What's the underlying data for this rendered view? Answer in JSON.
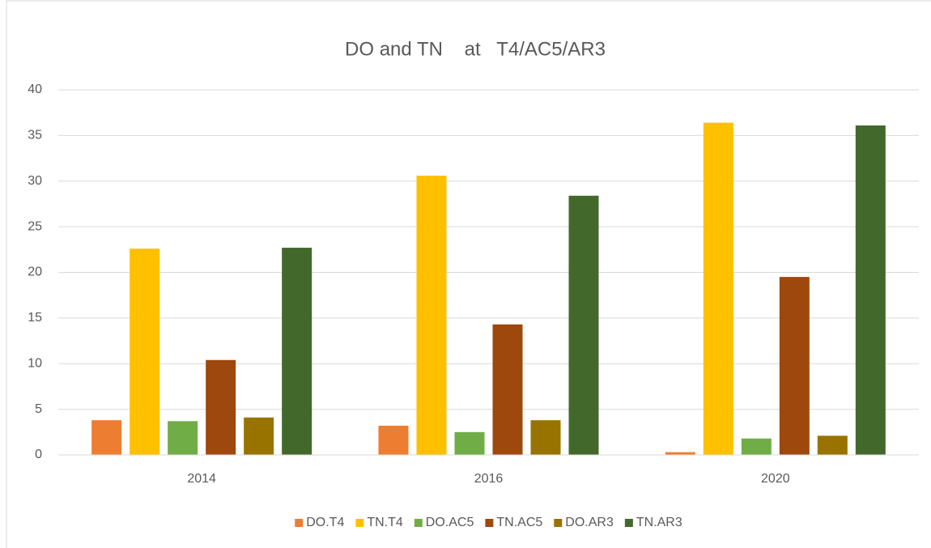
{
  "chart_data": {
    "type": "bar",
    "title": "DO and TN    at   T4/AC5/AR3",
    "categories": [
      "2014",
      "2016",
      "2020"
    ],
    "series": [
      {
        "name": "DO.T4",
        "color": "#ed7d31",
        "values": [
          3.8,
          3.2,
          0.3
        ]
      },
      {
        "name": "TN.T4",
        "color": "#ffc000",
        "values": [
          22.6,
          30.6,
          36.4
        ]
      },
      {
        "name": "DO.AC5",
        "color": "#70ad47",
        "values": [
          3.7,
          2.5,
          1.8
        ]
      },
      {
        "name": "TN.AC5",
        "color": "#9e480e",
        "values": [
          10.4,
          14.3,
          19.5
        ]
      },
      {
        "name": "DO.AR3",
        "color": "#997300",
        "values": [
          4.1,
          3.8,
          2.1
        ]
      },
      {
        "name": "TN.AR3",
        "color": "#43682b",
        "values": [
          22.7,
          28.4,
          36.1
        ]
      }
    ],
    "ylim": [
      0,
      40
    ],
    "yticks": [
      0,
      5,
      10,
      15,
      20,
      25,
      30,
      35,
      40
    ],
    "grid": true,
    "legend": "bottom"
  }
}
